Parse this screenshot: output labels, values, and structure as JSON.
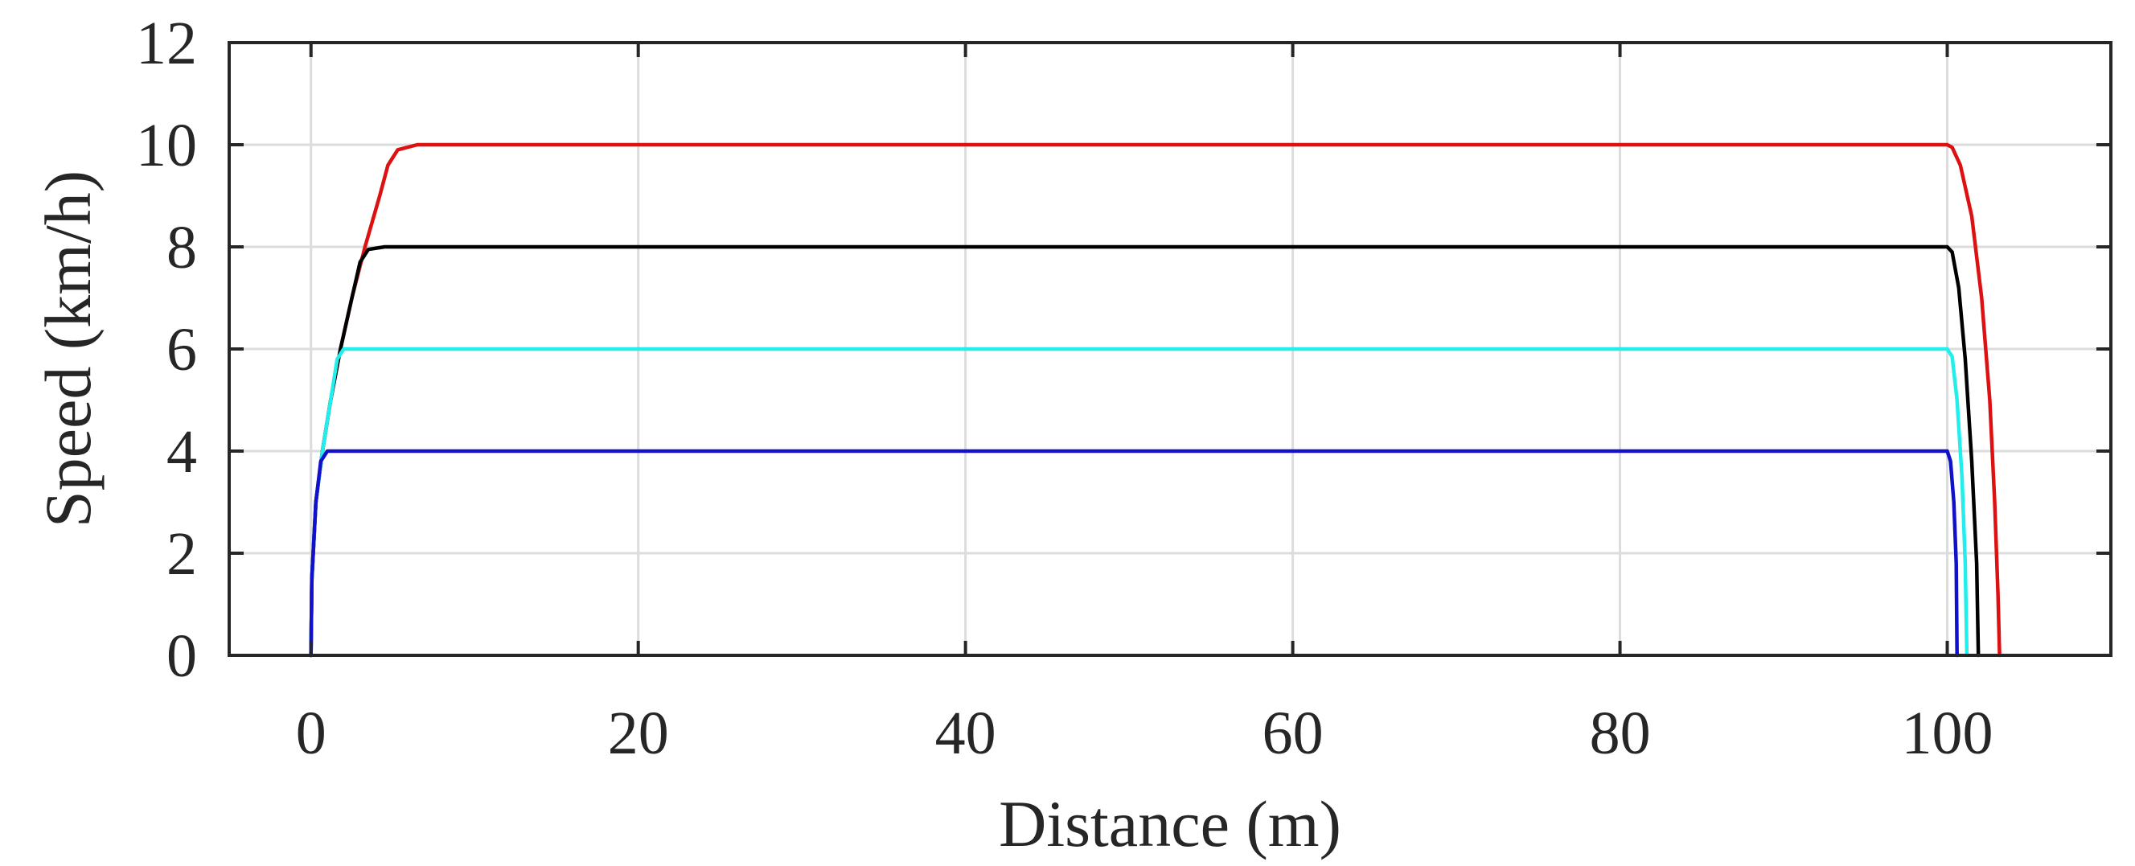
{
  "chart_data": {
    "type": "line",
    "title": "",
    "xlabel": "Distance (m)",
    "ylabel": "Speed (km/h)",
    "xlim": [
      -5,
      110
    ],
    "ylim": [
      0,
      12
    ],
    "xticks": [
      0,
      20,
      40,
      60,
      80,
      100
    ],
    "yticks": [
      0,
      2,
      4,
      6,
      8,
      10,
      12
    ],
    "grid": true,
    "legend": "none",
    "series": [
      {
        "color": "#dd1111",
        "points": [
          [
            0,
            0
          ],
          [
            0.05,
            1.5
          ],
          [
            0.3,
            3.0
          ],
          [
            0.7,
            4.0
          ],
          [
            1.2,
            5.0
          ],
          [
            1.8,
            6.0
          ],
          [
            2.5,
            7.0
          ],
          [
            3.3,
            8.0
          ],
          [
            4.2,
            9.0
          ],
          [
            4.7,
            9.6
          ],
          [
            5.3,
            9.9
          ],
          [
            6.5,
            10
          ],
          [
            100,
            10
          ],
          [
            100.3,
            9.95
          ],
          [
            100.8,
            9.6
          ],
          [
            101.5,
            8.6
          ],
          [
            102.1,
            7.0
          ],
          [
            102.6,
            5.0
          ],
          [
            102.9,
            3.0
          ],
          [
            103.1,
            1.2
          ],
          [
            103.2,
            0
          ]
        ]
      },
      {
        "color": "#000000",
        "points": [
          [
            0,
            0
          ],
          [
            0.05,
            1.5
          ],
          [
            0.3,
            3.0
          ],
          [
            0.7,
            4.0
          ],
          [
            1.2,
            5.0
          ],
          [
            1.8,
            6.0
          ],
          [
            2.5,
            7.0
          ],
          [
            3.0,
            7.7
          ],
          [
            3.5,
            7.95
          ],
          [
            4.5,
            8
          ],
          [
            100,
            8
          ],
          [
            100.3,
            7.9
          ],
          [
            100.7,
            7.2
          ],
          [
            101.1,
            5.8
          ],
          [
            101.5,
            3.8
          ],
          [
            101.8,
            1.8
          ],
          [
            101.9,
            0
          ]
        ]
      },
      {
        "color": "#22eeee",
        "points": [
          [
            0,
            0
          ],
          [
            0.05,
            1.5
          ],
          [
            0.3,
            3.0
          ],
          [
            0.7,
            4.0
          ],
          [
            1.2,
            5.0
          ],
          [
            1.6,
            5.8
          ],
          [
            2.0,
            6.0
          ],
          [
            2.8,
            6
          ],
          [
            100,
            6
          ],
          [
            100.3,
            5.85
          ],
          [
            100.6,
            5.0
          ],
          [
            100.9,
            3.5
          ],
          [
            101.1,
            1.8
          ],
          [
            101.2,
            0
          ]
        ]
      },
      {
        "color": "#1111cc",
        "points": [
          [
            0,
            0
          ],
          [
            0.05,
            1.5
          ],
          [
            0.3,
            3.0
          ],
          [
            0.6,
            3.8
          ],
          [
            1.0,
            4.0
          ],
          [
            1.6,
            4
          ],
          [
            100,
            4
          ],
          [
            100.2,
            3.8
          ],
          [
            100.4,
            3.0
          ],
          [
            100.55,
            1.8
          ],
          [
            100.6,
            0
          ]
        ]
      }
    ]
  }
}
